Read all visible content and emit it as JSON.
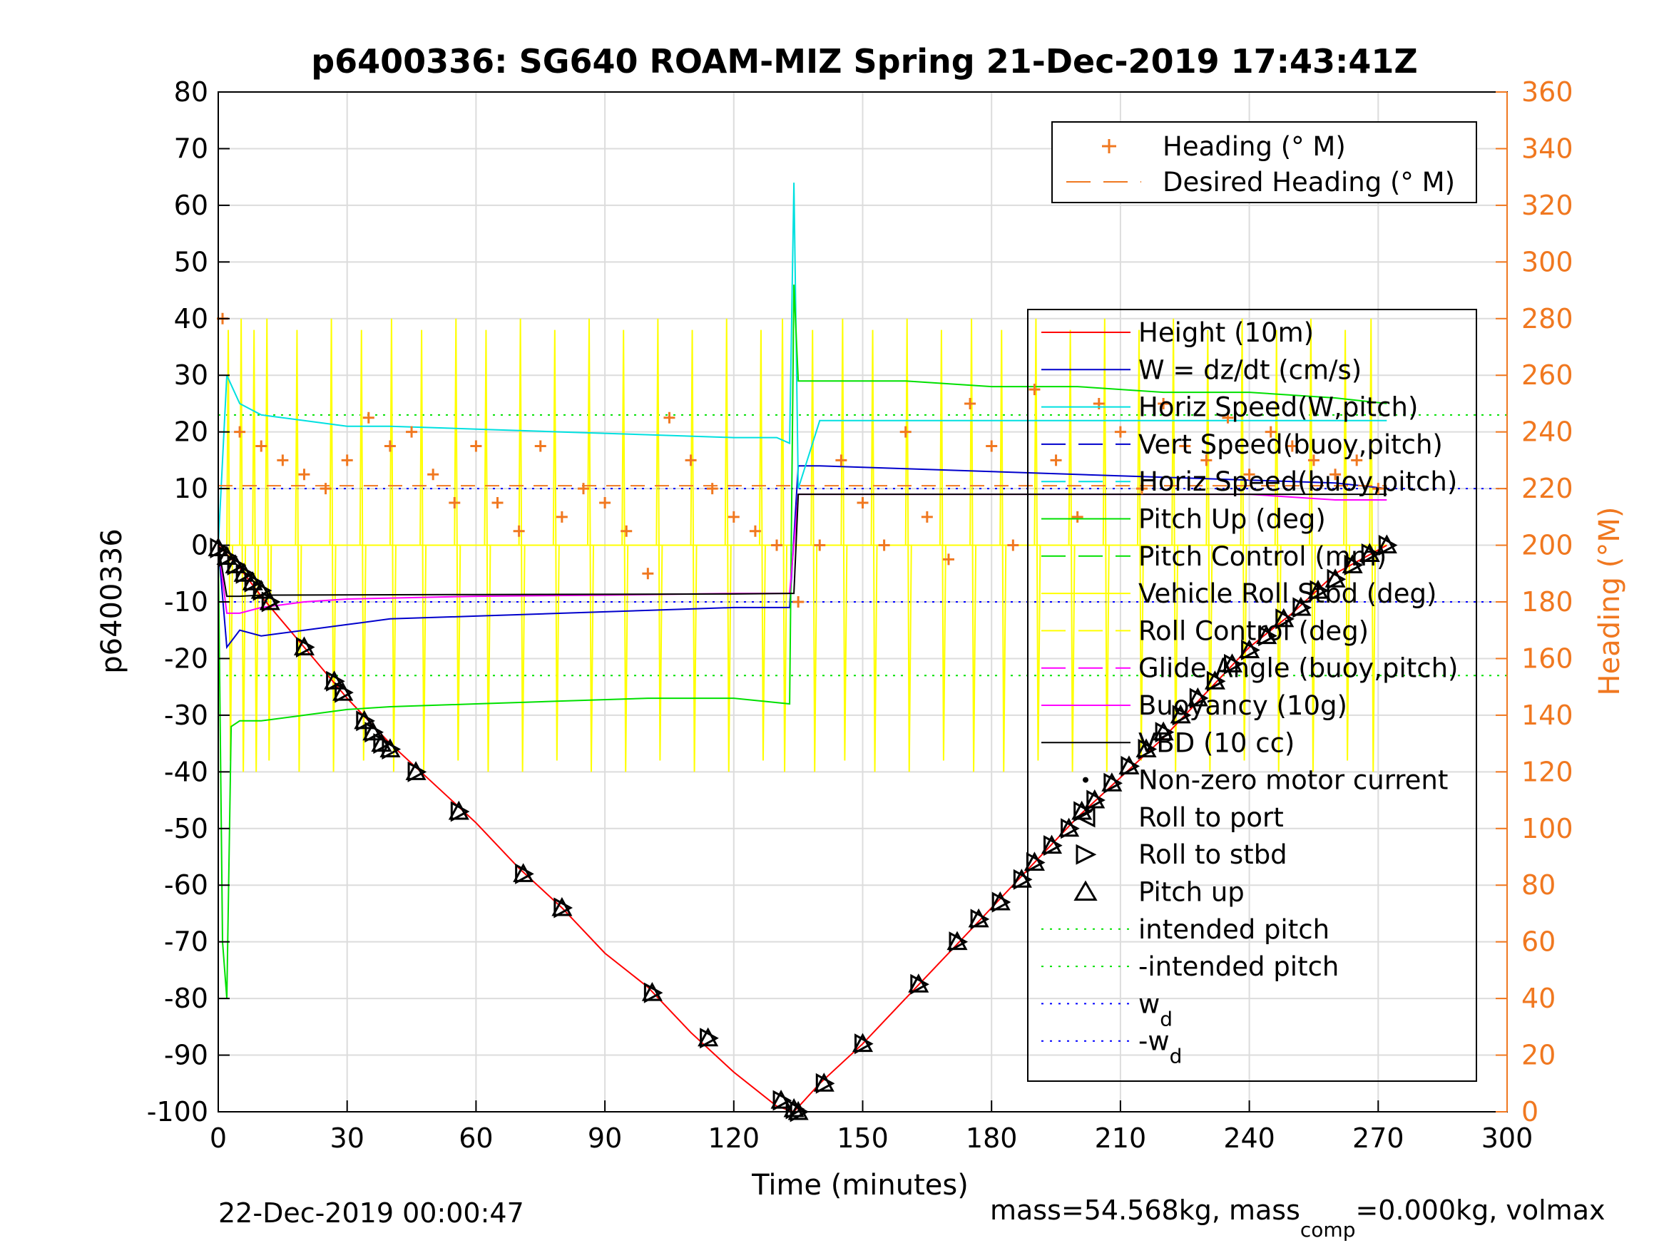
{
  "chart_data": {
    "type": "line",
    "title": "p6400336: SG640 ROAM-MIZ Spring 21-Dec-2019 17:43:41Z",
    "xlabel": "Time (minutes)",
    "ylabel": "p6400336",
    "y2label": "Heading (°M)",
    "xlim": [
      0,
      300
    ],
    "ylim": [
      -100,
      80
    ],
    "y2lim": [
      0,
      360
    ],
    "xticks": [
      "0",
      "30",
      "60",
      "90",
      "120",
      "150",
      "180",
      "210",
      "240",
      "270",
      "300"
    ],
    "yticks": [
      "80",
      "70",
      "60",
      "50",
      "40",
      "30",
      "20",
      "10",
      "0",
      "-10",
      "-20",
      "-30",
      "-40",
      "-50",
      "-60",
      "-70",
      "-80",
      "-90",
      "-100"
    ],
    "y2ticks": [
      "360",
      "340",
      "320",
      "300",
      "280",
      "260",
      "240",
      "220",
      "200",
      "180",
      "160",
      "140",
      "120",
      "100",
      "80",
      "60",
      "40",
      "20",
      "0"
    ],
    "grid": true,
    "legend_top": [
      {
        "name": "Heading (° M)",
        "color": "#f07820",
        "marker": "+"
      },
      {
        "name": "Desired Heading (° M)",
        "color": "#f07820",
        "style": "dashed"
      }
    ],
    "legend_main": [
      {
        "name": "Height (10m)",
        "color": "#ff0000",
        "style": "solid"
      },
      {
        "name": "W = dz/dt (cm/s)",
        "color": "#0000cc",
        "style": "solid"
      },
      {
        "name": "Horiz Speed(W,pitch)",
        "color": "#00e0e0",
        "style": "solid"
      },
      {
        "name": "Vert Speed(buoy,pitch)",
        "color": "#0000cc",
        "style": "dashed"
      },
      {
        "name": "Horiz Speed(buoy,pitch)",
        "color": "#00e0e0",
        "style": "dashed"
      },
      {
        "name": "Pitch Up (deg)",
        "color": "#00e000",
        "style": "solid"
      },
      {
        "name": "Pitch Control (mm)",
        "color": "#00e000",
        "style": "dashed"
      },
      {
        "name": "Vehicle Roll Stbd (deg)",
        "color": "#ffff00",
        "style": "solid"
      },
      {
        "name": "Roll Control (deg)",
        "color": "#ffff00",
        "style": "dashed"
      },
      {
        "name": "Glide Angle (buoy,pitch)",
        "color": "#ff00ff",
        "style": "dashed"
      },
      {
        "name": "Buoyancy (10g)",
        "color": "#ff00ff",
        "style": "solid"
      },
      {
        "name": "VBD (10 cc)",
        "color": "#000000",
        "style": "solid"
      },
      {
        "name": "Non-zero motor current",
        "color": "#000000",
        "marker": "dot"
      },
      {
        "name": "Roll to port",
        "color": "#000000",
        "marker": "tri-left"
      },
      {
        "name": "Roll to stbd",
        "color": "#000000",
        "marker": "tri-right"
      },
      {
        "name": "Pitch up",
        "color": "#000000",
        "marker": "tri-up"
      },
      {
        "name": "intended pitch",
        "color": "#00e000",
        "style": "dotted"
      },
      {
        "name": "-intended pitch",
        "color": "#00e000",
        "style": "dotted"
      },
      {
        "name": "w",
        "sub": "d",
        "color": "#0000ff",
        "style": "dotted"
      },
      {
        "name": "-w",
        "sub": "d",
        "color": "#0000ff",
        "style": "dotted"
      }
    ],
    "series": [
      {
        "name": "Height (10m)",
        "color": "#ff0000",
        "x": [
          0,
          5,
          10,
          20,
          30,
          40,
          50,
          60,
          70,
          80,
          90,
          100,
          110,
          120,
          130,
          134,
          140,
          150,
          160,
          170,
          180,
          190,
          200,
          210,
          220,
          230,
          240,
          250,
          260,
          272
        ],
        "values": [
          0,
          -4,
          -9,
          -18,
          -27,
          -35,
          -42,
          -49,
          -57,
          -64,
          -72,
          -78,
          -86,
          -93,
          -99,
          -100,
          -95,
          -88,
          -80,
          -72,
          -64,
          -56,
          -48,
          -41,
          -34,
          -26,
          -18,
          -12,
          -5,
          0
        ]
      },
      {
        "name": "W = dz/dt (cm/s)",
        "color": "#0000cc",
        "x": [
          0,
          2,
          5,
          10,
          20,
          30,
          40,
          60,
          80,
          100,
          120,
          133,
          135,
          140,
          160,
          180,
          200,
          220,
          240,
          260,
          272
        ],
        "values": [
          0,
          -18,
          -15,
          -16,
          -15,
          -14,
          -13,
          -12.5,
          -12,
          -11.5,
          -11,
          -11,
          14,
          14,
          13.5,
          13,
          12.5,
          12,
          11.5,
          11,
          10
        ]
      },
      {
        "name": "Horiz Speed(W,pitch)",
        "color": "#00e0e0",
        "x": [
          0,
          2,
          5,
          10,
          20,
          30,
          40,
          60,
          80,
          100,
          120,
          130,
          133,
          134,
          135,
          140,
          160,
          180,
          200,
          220,
          240,
          260,
          272
        ],
        "values": [
          0,
          30,
          25,
          23,
          22,
          21,
          21,
          20.5,
          20,
          19.5,
          19,
          19,
          18,
          64,
          10,
          22,
          22,
          22,
          22,
          22,
          22,
          22,
          22
        ]
      },
      {
        "name": "Pitch Up (deg)",
        "color": "#00e000",
        "x": [
          0,
          1,
          2,
          3,
          5,
          10,
          20,
          30,
          40,
          60,
          80,
          100,
          120,
          133,
          134,
          135,
          140,
          160,
          180,
          200,
          220,
          240,
          260,
          272
        ],
        "values": [
          0,
          -70,
          -80,
          -32,
          -31,
          -31,
          -30,
          -29,
          -28.5,
          -28,
          -27.5,
          -27,
          -27,
          -28,
          46,
          29,
          29,
          29,
          28,
          28,
          27,
          27,
          26,
          25
        ]
      },
      {
        "name": "Buoyancy (10g)",
        "color": "#ff00ff",
        "x": [
          0,
          2,
          5,
          10,
          20,
          30,
          60,
          90,
          120,
          133,
          135,
          150,
          180,
          210,
          240,
          260,
          272
        ],
        "values": [
          0,
          -12,
          -12,
          -11,
          -10,
          -9.5,
          -9,
          -8.8,
          -8.5,
          -8.5,
          9,
          9,
          9,
          9,
          9,
          8,
          8
        ]
      },
      {
        "name": "VBD (10 cc)",
        "color": "#000000",
        "x": [
          0,
          2,
          5,
          10,
          60,
          120,
          133,
          134,
          135,
          160,
          200,
          240,
          272
        ],
        "values": [
          0,
          -9,
          -9,
          -8.8,
          -8.7,
          -8.6,
          -8.5,
          -8.5,
          9,
          9,
          9,
          9,
          9
        ]
      },
      {
        "name": "Heading (° M)",
        "color": "#f07820",
        "axis": "right",
        "x": [
          1,
          5,
          10,
          15,
          20,
          25,
          30,
          35,
          40,
          45,
          50,
          55,
          60,
          65,
          70,
          75,
          80,
          85,
          90,
          95,
          100,
          105,
          110,
          115,
          120,
          125,
          130,
          135,
          140,
          145,
          150,
          155,
          160,
          165,
          170,
          175,
          180,
          185,
          190,
          195,
          200,
          205,
          210,
          215,
          220,
          225,
          230,
          235,
          240,
          245,
          250,
          255,
          260,
          265,
          270
        ],
        "values": [
          280,
          240,
          235,
          230,
          225,
          220,
          230,
          245,
          235,
          240,
          225,
          215,
          235,
          215,
          205,
          235,
          210,
          220,
          215,
          205,
          190,
          245,
          230,
          220,
          210,
          205,
          200,
          180,
          200,
          230,
          215,
          200,
          240,
          210,
          195,
          250,
          235,
          200,
          255,
          230,
          210,
          250,
          240,
          220,
          250,
          235,
          230,
          245,
          225,
          240,
          235,
          230,
          225,
          230,
          220
        ]
      }
    ],
    "dive_markers": {
      "x": [
        0,
        2,
        4,
        6,
        8,
        10,
        12,
        20,
        27,
        29,
        34,
        36,
        38,
        40,
        46,
        56,
        71,
        80,
        101,
        114,
        131,
        134,
        135,
        141,
        150,
        163,
        172,
        177,
        182,
        187,
        190,
        194,
        198,
        201,
        204,
        208,
        212,
        216,
        220,
        224,
        228,
        232,
        236,
        240,
        244,
        248,
        252,
        256,
        260,
        264,
        268,
        272
      ],
      "values": [
        -0.5,
        -2,
        -3.5,
        -5,
        -6.5,
        -8,
        -10,
        -18,
        -24,
        -26,
        -31,
        -33,
        -35,
        -36,
        -40,
        -47,
        -58,
        -64,
        -79,
        -87,
        -98,
        -99.5,
        -100,
        -95,
        -88,
        -77.5,
        -70,
        -66,
        -63,
        -59,
        -56,
        -53,
        -50,
        -47,
        -45,
        -42,
        -39,
        -36,
        -33,
        -30,
        -27,
        -24,
        -21,
        -18.5,
        -16,
        -13,
        -11,
        -8,
        -6,
        -3.5,
        -1.5,
        0
      ]
    }
  },
  "footer": {
    "timestamp": "22-Dec-2019 00:00:47",
    "mass_text": "mass=54.568kg, mass",
    "mass_sub": "comp",
    "mass_rest": "=0.000kg, volmax"
  }
}
